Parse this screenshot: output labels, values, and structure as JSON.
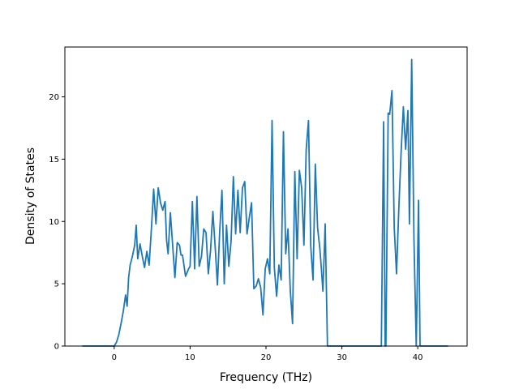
{
  "chart_data": {
    "type": "line",
    "title": "",
    "xlabel": "Frequency (THz)",
    "ylabel": "Density of States",
    "xlim": [
      -6.5,
      46.5
    ],
    "ylim": [
      0,
      24
    ],
    "xticks": [
      0,
      10,
      20,
      30,
      40
    ],
    "yticks": [
      0,
      5,
      10,
      15,
      20
    ],
    "grid": false,
    "series_color": "#1f77b4",
    "series": [
      {
        "x": [
          -4.2,
          0,
          0.3,
          0.6,
          0.9,
          1.2,
          1.5,
          1.7,
          1.9,
          2.1,
          2.4,
          2.7,
          2.9,
          3.1,
          3.4,
          3.7,
          4.0,
          4.3,
          4.6,
          4.9,
          5.2,
          5.5,
          5.8,
          6.1,
          6.4,
          6.7,
          6.9,
          7.1,
          7.4,
          7.7,
          8.0,
          8.3,
          8.6,
          8.8,
          9.0,
          9.4,
          9.8,
          10.0,
          10.3,
          10.6,
          10.9,
          11.2,
          11.5,
          11.8,
          12.1,
          12.4,
          12.7,
          13.0,
          13.3,
          13.6,
          13.9,
          14.2,
          14.5,
          14.8,
          15.1,
          15.4,
          15.7,
          16.0,
          16.3,
          16.6,
          16.9,
          17.2,
          17.5,
          17.8,
          18.1,
          18.4,
          18.7,
          19.0,
          19.3,
          19.6,
          19.9,
          20.2,
          20.5,
          20.8,
          21.1,
          21.4,
          21.7,
          22.0,
          22.3,
          22.6,
          22.9,
          23.2,
          23.5,
          23.8,
          24.1,
          24.4,
          24.7,
          25.0,
          25.3,
          25.6,
          25.9,
          26.2,
          26.5,
          26.8,
          27.1,
          27.3,
          27.5,
          27.8,
          28.1,
          35.0,
          35.2,
          35.5,
          35.7,
          35.8,
          36.1,
          36.3,
          36.6,
          36.9,
          37.2,
          37.5,
          37.8,
          38.1,
          38.4,
          38.7,
          38.9,
          39.2,
          39.5,
          39.8,
          40.1,
          40.3,
          44.0
        ],
        "y": [
          0,
          0,
          0.3,
          0.9,
          1.8,
          2.8,
          4.1,
          3.2,
          5.5,
          6.5,
          7.2,
          8.1,
          9.7,
          7.0,
          8.2,
          7.2,
          6.3,
          7.6,
          6.5,
          9.4,
          12.6,
          9.8,
          12.7,
          11.5,
          10.9,
          11.6,
          8.5,
          7.4,
          10.7,
          8.1,
          5.5,
          8.3,
          8.1,
          7.3,
          7.3,
          5.6,
          6.2,
          6.4,
          11.6,
          6.2,
          12.0,
          6.4,
          7.2,
          9.4,
          9.1,
          5.8,
          7.7,
          10.8,
          8.0,
          4.9,
          9.2,
          12.5,
          5.0,
          9.7,
          6.4,
          8.4,
          13.6,
          9.0,
          12.5,
          9.1,
          12.7,
          13.2,
          9.0,
          10.3,
          11.5,
          4.6,
          4.8,
          5.4,
          4.7,
          2.5,
          6.2,
          7.0,
          5.8,
          18.1,
          6.3,
          4.0,
          6.5,
          5.3,
          17.2,
          7.4,
          9.4,
          4.5,
          1.8,
          14.0,
          7.0,
          14.1,
          12.7,
          8.1,
          15.8,
          18.1,
          8.0,
          5.3,
          14.6,
          9.5,
          7.8,
          6.2,
          4.4,
          9.8,
          0,
          0,
          0,
          18.0,
          0,
          0,
          18.7,
          18.6,
          20.5,
          9.5,
          5.8,
          11.0,
          15.5,
          19.2,
          15.8,
          18.9,
          9.8,
          23.0,
          8.5,
          0,
          11.7,
          0,
          0
        ]
      }
    ]
  }
}
